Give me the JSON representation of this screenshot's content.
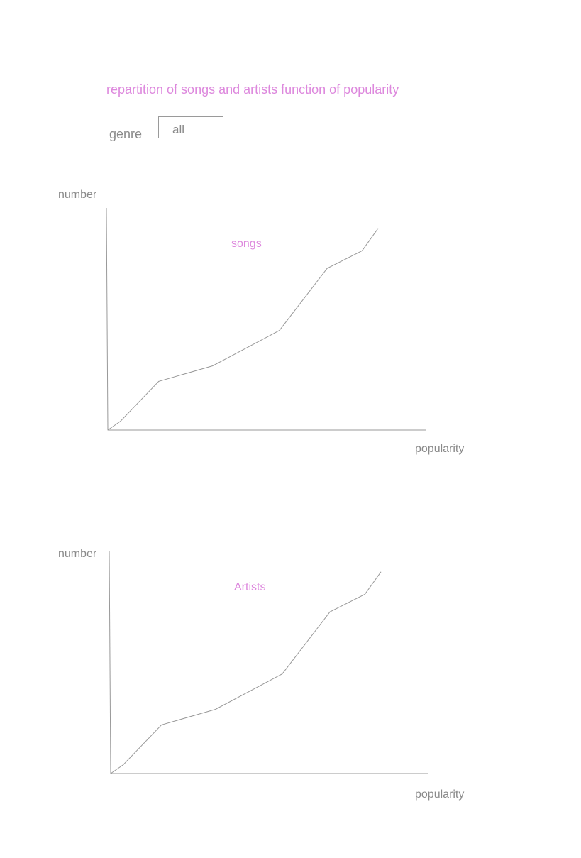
{
  "header": {
    "title": "repartition of songs and artists function of popularity"
  },
  "filter": {
    "label": "genre",
    "selected": "all"
  },
  "colors": {
    "accent": "#dd88dd",
    "axis": "#8a8a8a",
    "line": "#999999"
  },
  "chart_data": [
    {
      "type": "line",
      "xlabel": "popularity",
      "ylabel": "number",
      "series": [
        {
          "name": "songs",
          "x": [
            0,
            4,
            16,
            33,
            54,
            69,
            80,
            85
          ],
          "y": [
            0,
            4,
            22,
            29,
            45,
            73,
            81,
            91
          ]
        }
      ],
      "xlim": [
        0,
        100
      ],
      "ylim": [
        0,
        100
      ],
      "grid": false
    },
    {
      "type": "line",
      "xlabel": "popularity",
      "ylabel": "number",
      "series": [
        {
          "name": "Artists",
          "x": [
            0,
            4,
            16,
            33,
            54,
            69,
            80,
            85
          ],
          "y": [
            0,
            4,
            22,
            29,
            45,
            73,
            81,
            91
          ]
        }
      ],
      "xlim": [
        0,
        100
      ],
      "ylim": [
        0,
        100
      ],
      "grid": false
    }
  ]
}
